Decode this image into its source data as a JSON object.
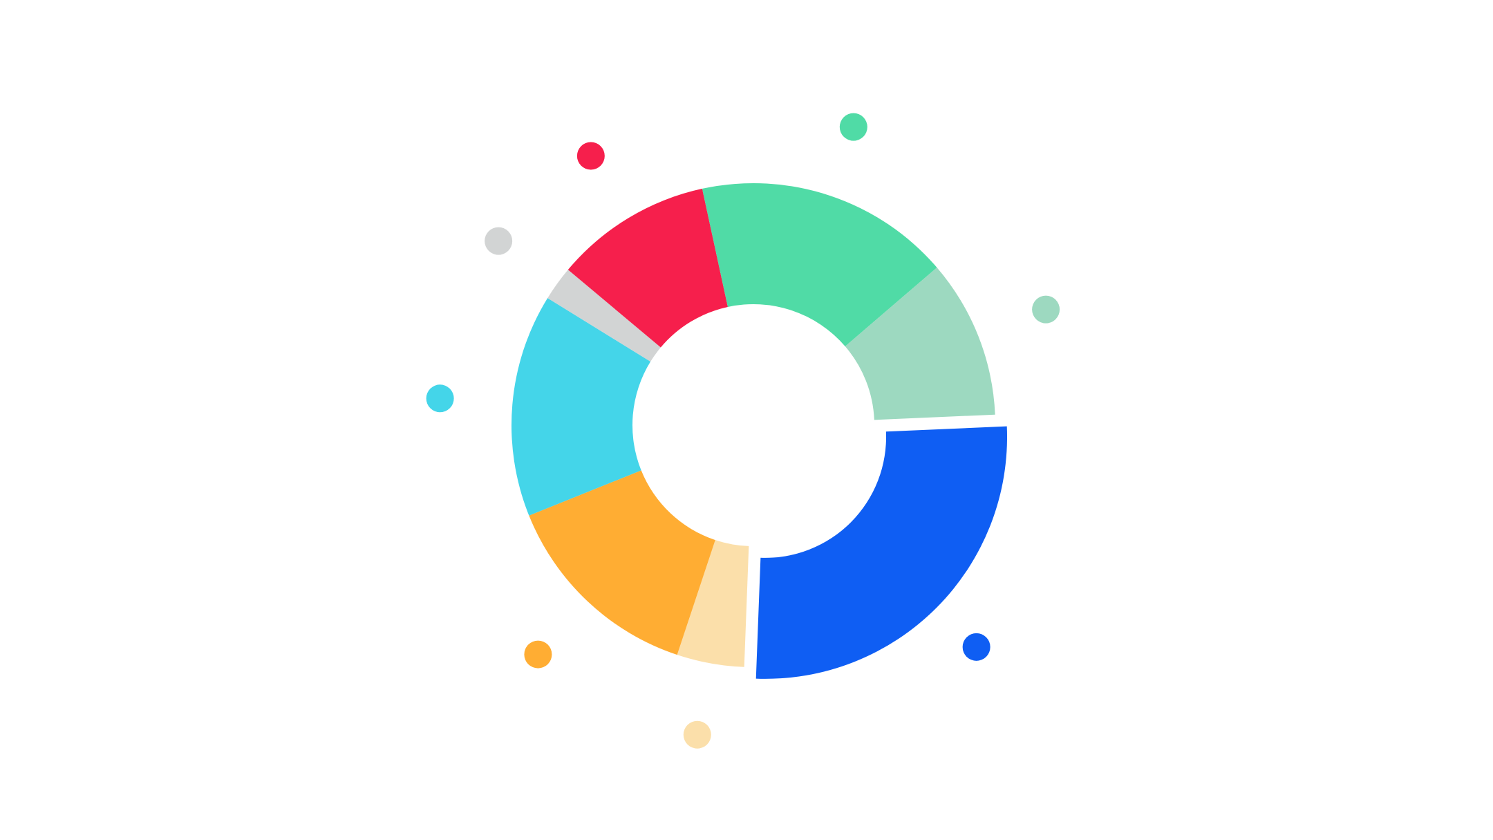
{
  "chart_data": {
    "type": "pie",
    "donut": true,
    "title": "",
    "legend": "none",
    "data_labels": "none",
    "slices": [
      {
        "value": 26.3,
        "color": "#0F5EF3",
        "exploded": true
      },
      {
        "value": 4.5,
        "color": "#FBDFAA"
      },
      {
        "value": 13.8,
        "color": "#FFAD33"
      },
      {
        "value": 14.9,
        "color": "#44D5E9"
      },
      {
        "value": 2.3,
        "color": "#D2D4D4"
      },
      {
        "value": 10.5,
        "color": "#F61F4C"
      },
      {
        "value": 17.1,
        "color": "#50DBA6"
      },
      {
        "value": 10.6,
        "color": "#9DD9C0"
      }
    ]
  }
}
